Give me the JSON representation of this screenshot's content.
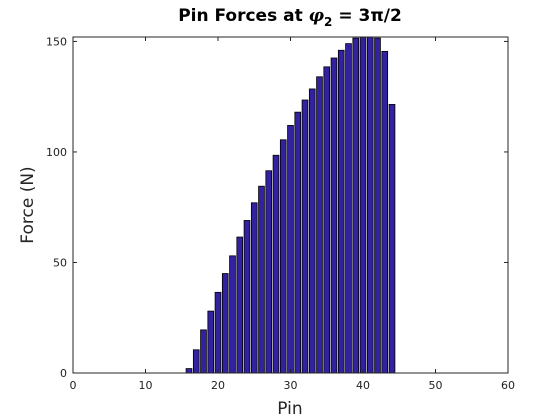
{
  "chart_data": {
    "type": "bar",
    "title": {
      "prefix": "Pin Forces at ",
      "symbol": "φ",
      "subscript": "2",
      "suffix": " = 3π/2"
    },
    "xlabel": "Pin",
    "ylabel": "Force (N)",
    "xlim": [
      0,
      60
    ],
    "ylim": [
      0,
      152
    ],
    "xticks": [
      0,
      10,
      20,
      30,
      40,
      50,
      60
    ],
    "yticks": [
      0,
      50,
      100,
      150
    ],
    "grid": false,
    "bar_color": "#3322A0",
    "bar_edge_color": "#000000",
    "x": [
      16,
      17,
      18,
      19,
      20,
      21,
      22,
      23,
      24,
      25,
      26,
      27,
      28,
      29,
      30,
      31,
      32,
      33,
      34,
      35,
      36,
      37,
      38,
      39,
      40,
      41,
      42,
      43,
      44
    ],
    "values": [
      2,
      10.5,
      19.5,
      28,
      36.5,
      45,
      53,
      61.5,
      69,
      77,
      84.5,
      91.5,
      98.5,
      105.5,
      112,
      118,
      123.5,
      128.5,
      134,
      138.5,
      142.5,
      146,
      149,
      151.5,
      153.5,
      154,
      151.5,
      145.5,
      121.5
    ]
  }
}
